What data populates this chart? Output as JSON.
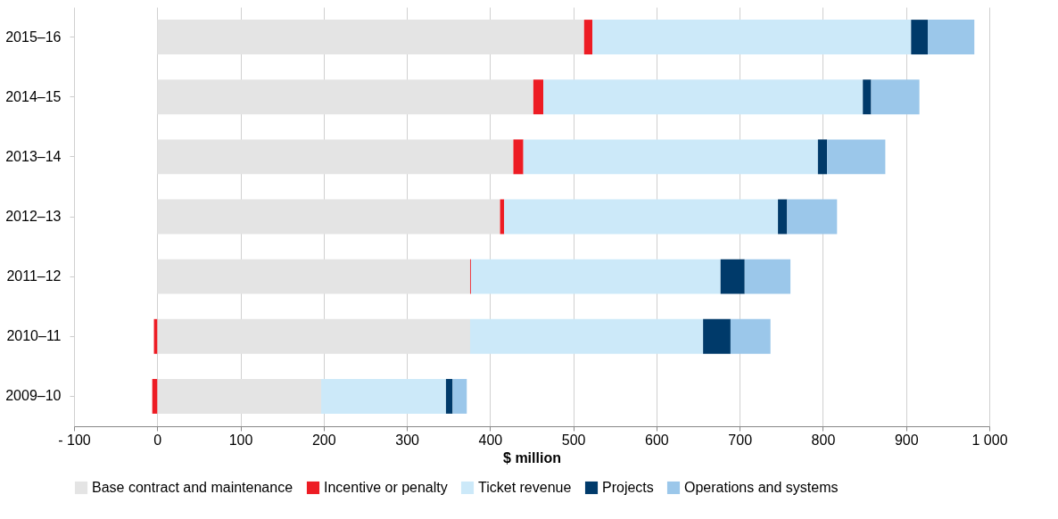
{
  "chart_data": {
    "type": "bar",
    "orientation": "horizontal",
    "stacked": true,
    "xlabel": "$ million",
    "categories": [
      "2015–16",
      "2014–15",
      "2013–14",
      "2012–13",
      "2011–12",
      "2010–11",
      "2009–10"
    ],
    "series": [
      {
        "name": "Base contract and maintenance",
        "color": "#e4e4e4",
        "values": [
          513,
          452,
          428,
          412,
          376,
          376,
          197
        ]
      },
      {
        "name": "Incentive or penalty",
        "color": "#ed1c24",
        "values": [
          10,
          12,
          12,
          5,
          1,
          -4,
          -6
        ]
      },
      {
        "name": "Ticket revenue",
        "color": "#cce9f9",
        "values": [
          383,
          384,
          354,
          329,
          300,
          280,
          150
        ]
      },
      {
        "name": "Projects",
        "color": "#003a6a",
        "values": [
          20,
          10,
          11,
          11,
          29,
          33,
          8
        ]
      },
      {
        "name": "Operations and systems",
        "color": "#9bc7ea",
        "values": [
          56,
          58,
          70,
          60,
          55,
          48,
          17
        ]
      }
    ],
    "xlim": [
      -100,
      1000
    ],
    "xticks": [
      {
        "value": -100,
        "label": "-  100"
      },
      0,
      100,
      200,
      300,
      400,
      500,
      600,
      700,
      800,
      900,
      {
        "value": 1000,
        "label": "1 000"
      }
    ],
    "grid": "x",
    "legend": "bottom"
  }
}
